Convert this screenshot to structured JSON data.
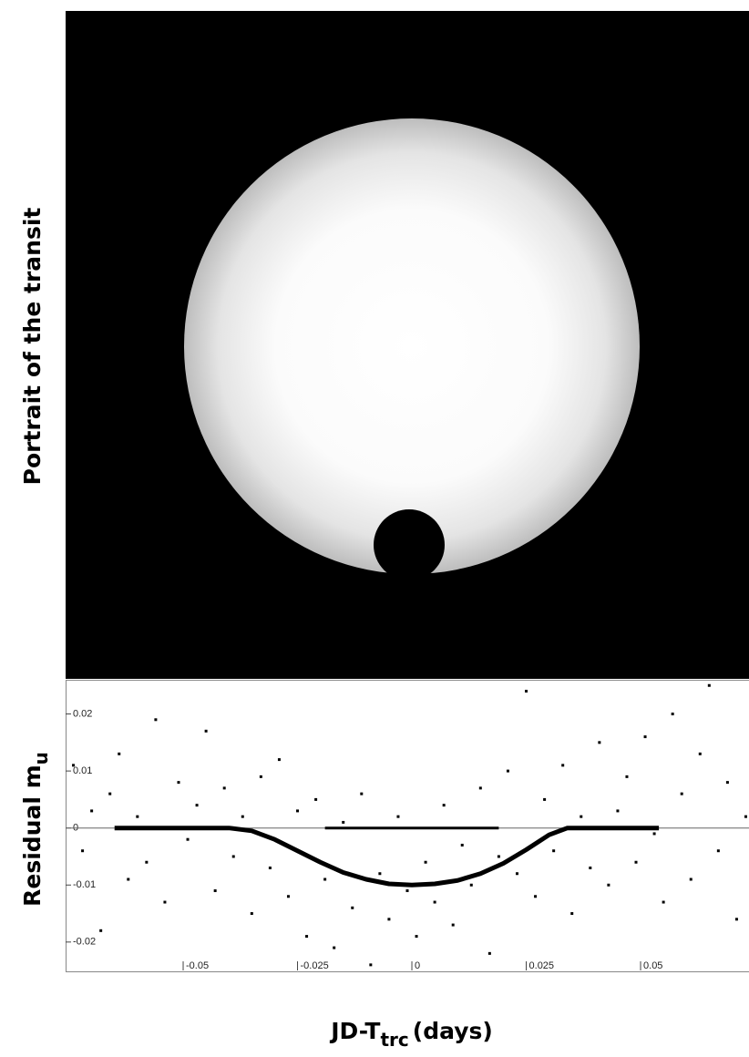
{
  "portrait": {
    "label": "Portrait of the transit"
  },
  "chart_data": {
    "type": "scatter",
    "ylabel": [
      "Residual m",
      "u"
    ],
    "xlabel": [
      "JD-T",
      "trc",
      "(days)"
    ],
    "xlim": [
      -0.0757,
      0.0737
    ],
    "ylim": [
      -0.0253,
      0.026
    ],
    "xticks": [
      -0.05,
      -0.025,
      0,
      0.025,
      0.05
    ],
    "yticks": [
      0.02,
      0.01,
      0,
      -0.01,
      -0.02
    ],
    "color": "#000000",
    "x": [
      -0.074,
      -0.072,
      -0.07,
      -0.068,
      -0.066,
      -0.064,
      -0.062,
      -0.06,
      -0.058,
      -0.056,
      -0.054,
      -0.051,
      -0.049,
      -0.047,
      -0.045,
      -0.043,
      -0.041,
      -0.039,
      -0.037,
      -0.035,
      -0.033,
      -0.031,
      -0.029,
      -0.027,
      -0.025,
      -0.023,
      -0.021,
      -0.019,
      -0.017,
      -0.015,
      -0.013,
      -0.011,
      -0.009,
      -0.007,
      -0.005,
      -0.003,
      -0.001,
      0.001,
      0.003,
      0.005,
      0.007,
      0.009,
      0.011,
      0.013,
      0.015,
      0.017,
      0.019,
      0.021,
      0.023,
      0.025,
      0.027,
      0.029,
      0.031,
      0.033,
      0.035,
      0.037,
      0.039,
      0.041,
      0.043,
      0.045,
      0.047,
      0.049,
      0.051,
      0.053,
      0.055,
      0.057,
      0.059,
      0.061,
      0.063,
      0.065,
      0.067,
      0.069,
      0.071,
      0.073
    ],
    "values": [
      0.011,
      -0.004,
      0.003,
      -0.018,
      0.006,
      0.013,
      -0.009,
      0.002,
      -0.006,
      0.019,
      -0.013,
      0.008,
      -0.002,
      0.004,
      0.017,
      -0.011,
      0.007,
      -0.005,
      0.002,
      -0.015,
      0.009,
      -0.007,
      0.012,
      -0.012,
      0.003,
      -0.019,
      0.005,
      -0.009,
      -0.021,
      0.001,
      -0.014,
      0.006,
      -0.024,
      -0.008,
      -0.016,
      0.002,
      -0.011,
      -0.019,
      -0.006,
      -0.013,
      0.004,
      -0.017,
      -0.003,
      -0.01,
      0.007,
      -0.022,
      -0.005,
      0.01,
      -0.008,
      0.024,
      -0.012,
      0.005,
      -0.004,
      0.011,
      -0.015,
      0.002,
      -0.007,
      0.015,
      -0.01,
      0.003,
      0.009,
      -0.006,
      0.016,
      -0.001,
      -0.013,
      0.02,
      0.006,
      -0.009,
      0.013,
      0.025,
      -0.004,
      0.008,
      -0.016,
      0.002
    ],
    "series": [
      {
        "color": "#000000",
        "x": [
          -0.065,
          -0.04,
          -0.035,
          -0.03,
          -0.025,
          -0.02,
          -0.015,
          -0.01,
          -0.005,
          0,
          0.005,
          0.01,
          0.015,
          0.02,
          0.025,
          0.03,
          0.034,
          0.054
        ],
        "values": [
          0,
          0,
          -0.0005,
          -0.002,
          -0.004,
          -0.006,
          -0.0078,
          -0.009,
          -0.0098,
          -0.01,
          -0.0098,
          -0.0092,
          -0.008,
          -0.0062,
          -0.0038,
          -0.0012,
          0,
          0
        ]
      },
      {
        "color": "#000000",
        "x": [
          -0.019,
          0.019
        ],
        "values": [
          0,
          0
        ]
      }
    ]
  }
}
